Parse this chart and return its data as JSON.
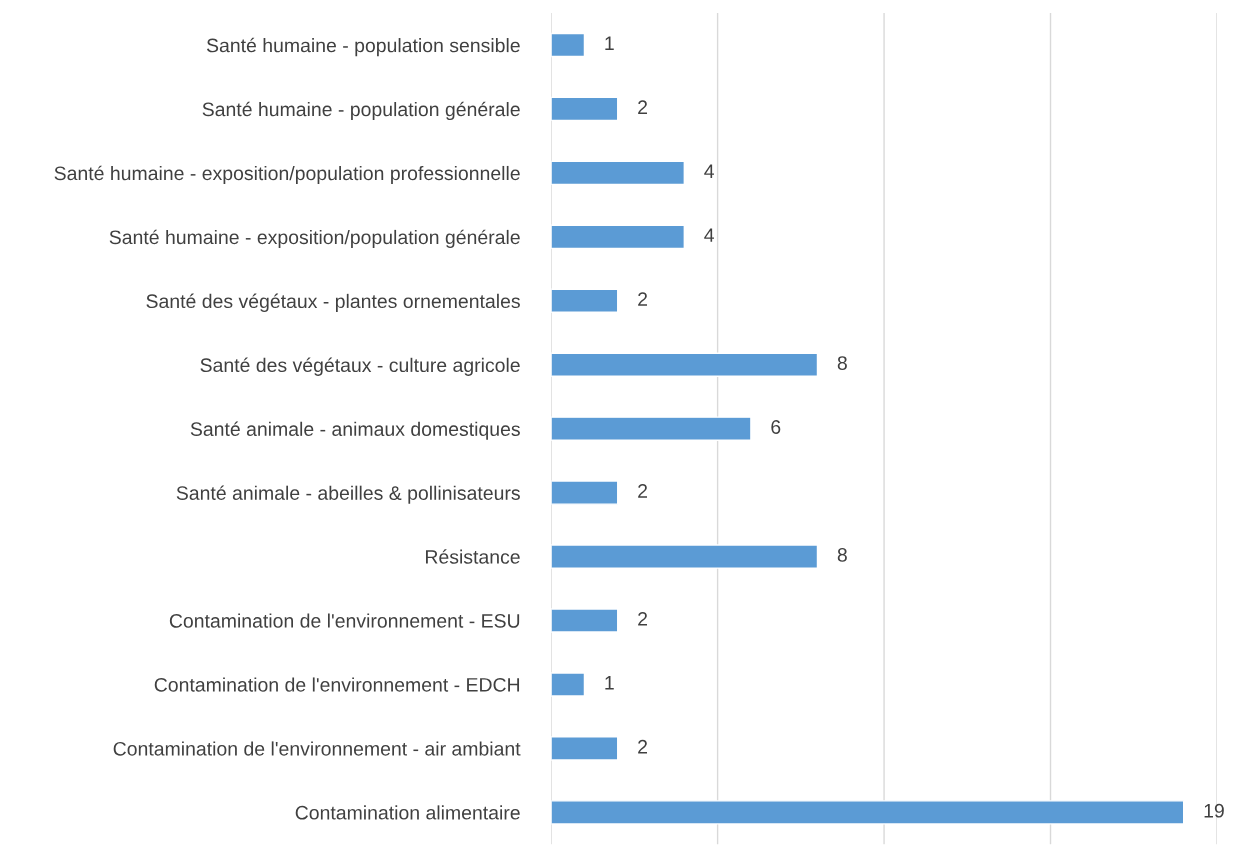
{
  "chart_data": {
    "type": "bar",
    "orientation": "horizontal",
    "categories": [
      "Santé humaine - population sensible",
      "Santé humaine - population générale",
      "Santé humaine - exposition/population professionnelle",
      "Santé humaine - exposition/population générale",
      "Santé des végétaux - plantes ornementales",
      "Santé des végétaux - culture agricole",
      "Santé animale - animaux domestiques",
      "Santé animale - abeilles & pollinisateurs",
      "Résistance",
      "Contamination de l'environnement - ESU",
      "Contamination de l'environnement - EDCH",
      "Contamination de l'environnement - air ambiant",
      "Contamination alimentaire"
    ],
    "values": [
      1,
      2,
      4,
      4,
      2,
      8,
      6,
      2,
      8,
      2,
      1,
      2,
      19
    ],
    "color": "#5b9bd5",
    "xlim": [
      0,
      20
    ],
    "xticks": [
      {
        "value": 0,
        "label": null
      },
      {
        "value": 5,
        "label": null
      },
      {
        "value": 10,
        "label": null
      },
      {
        "value": 15,
        "label": null
      },
      {
        "value": 20,
        "label": null
      }
    ],
    "tick_labels": "y",
    "grid": "x",
    "data_labels": true
  }
}
